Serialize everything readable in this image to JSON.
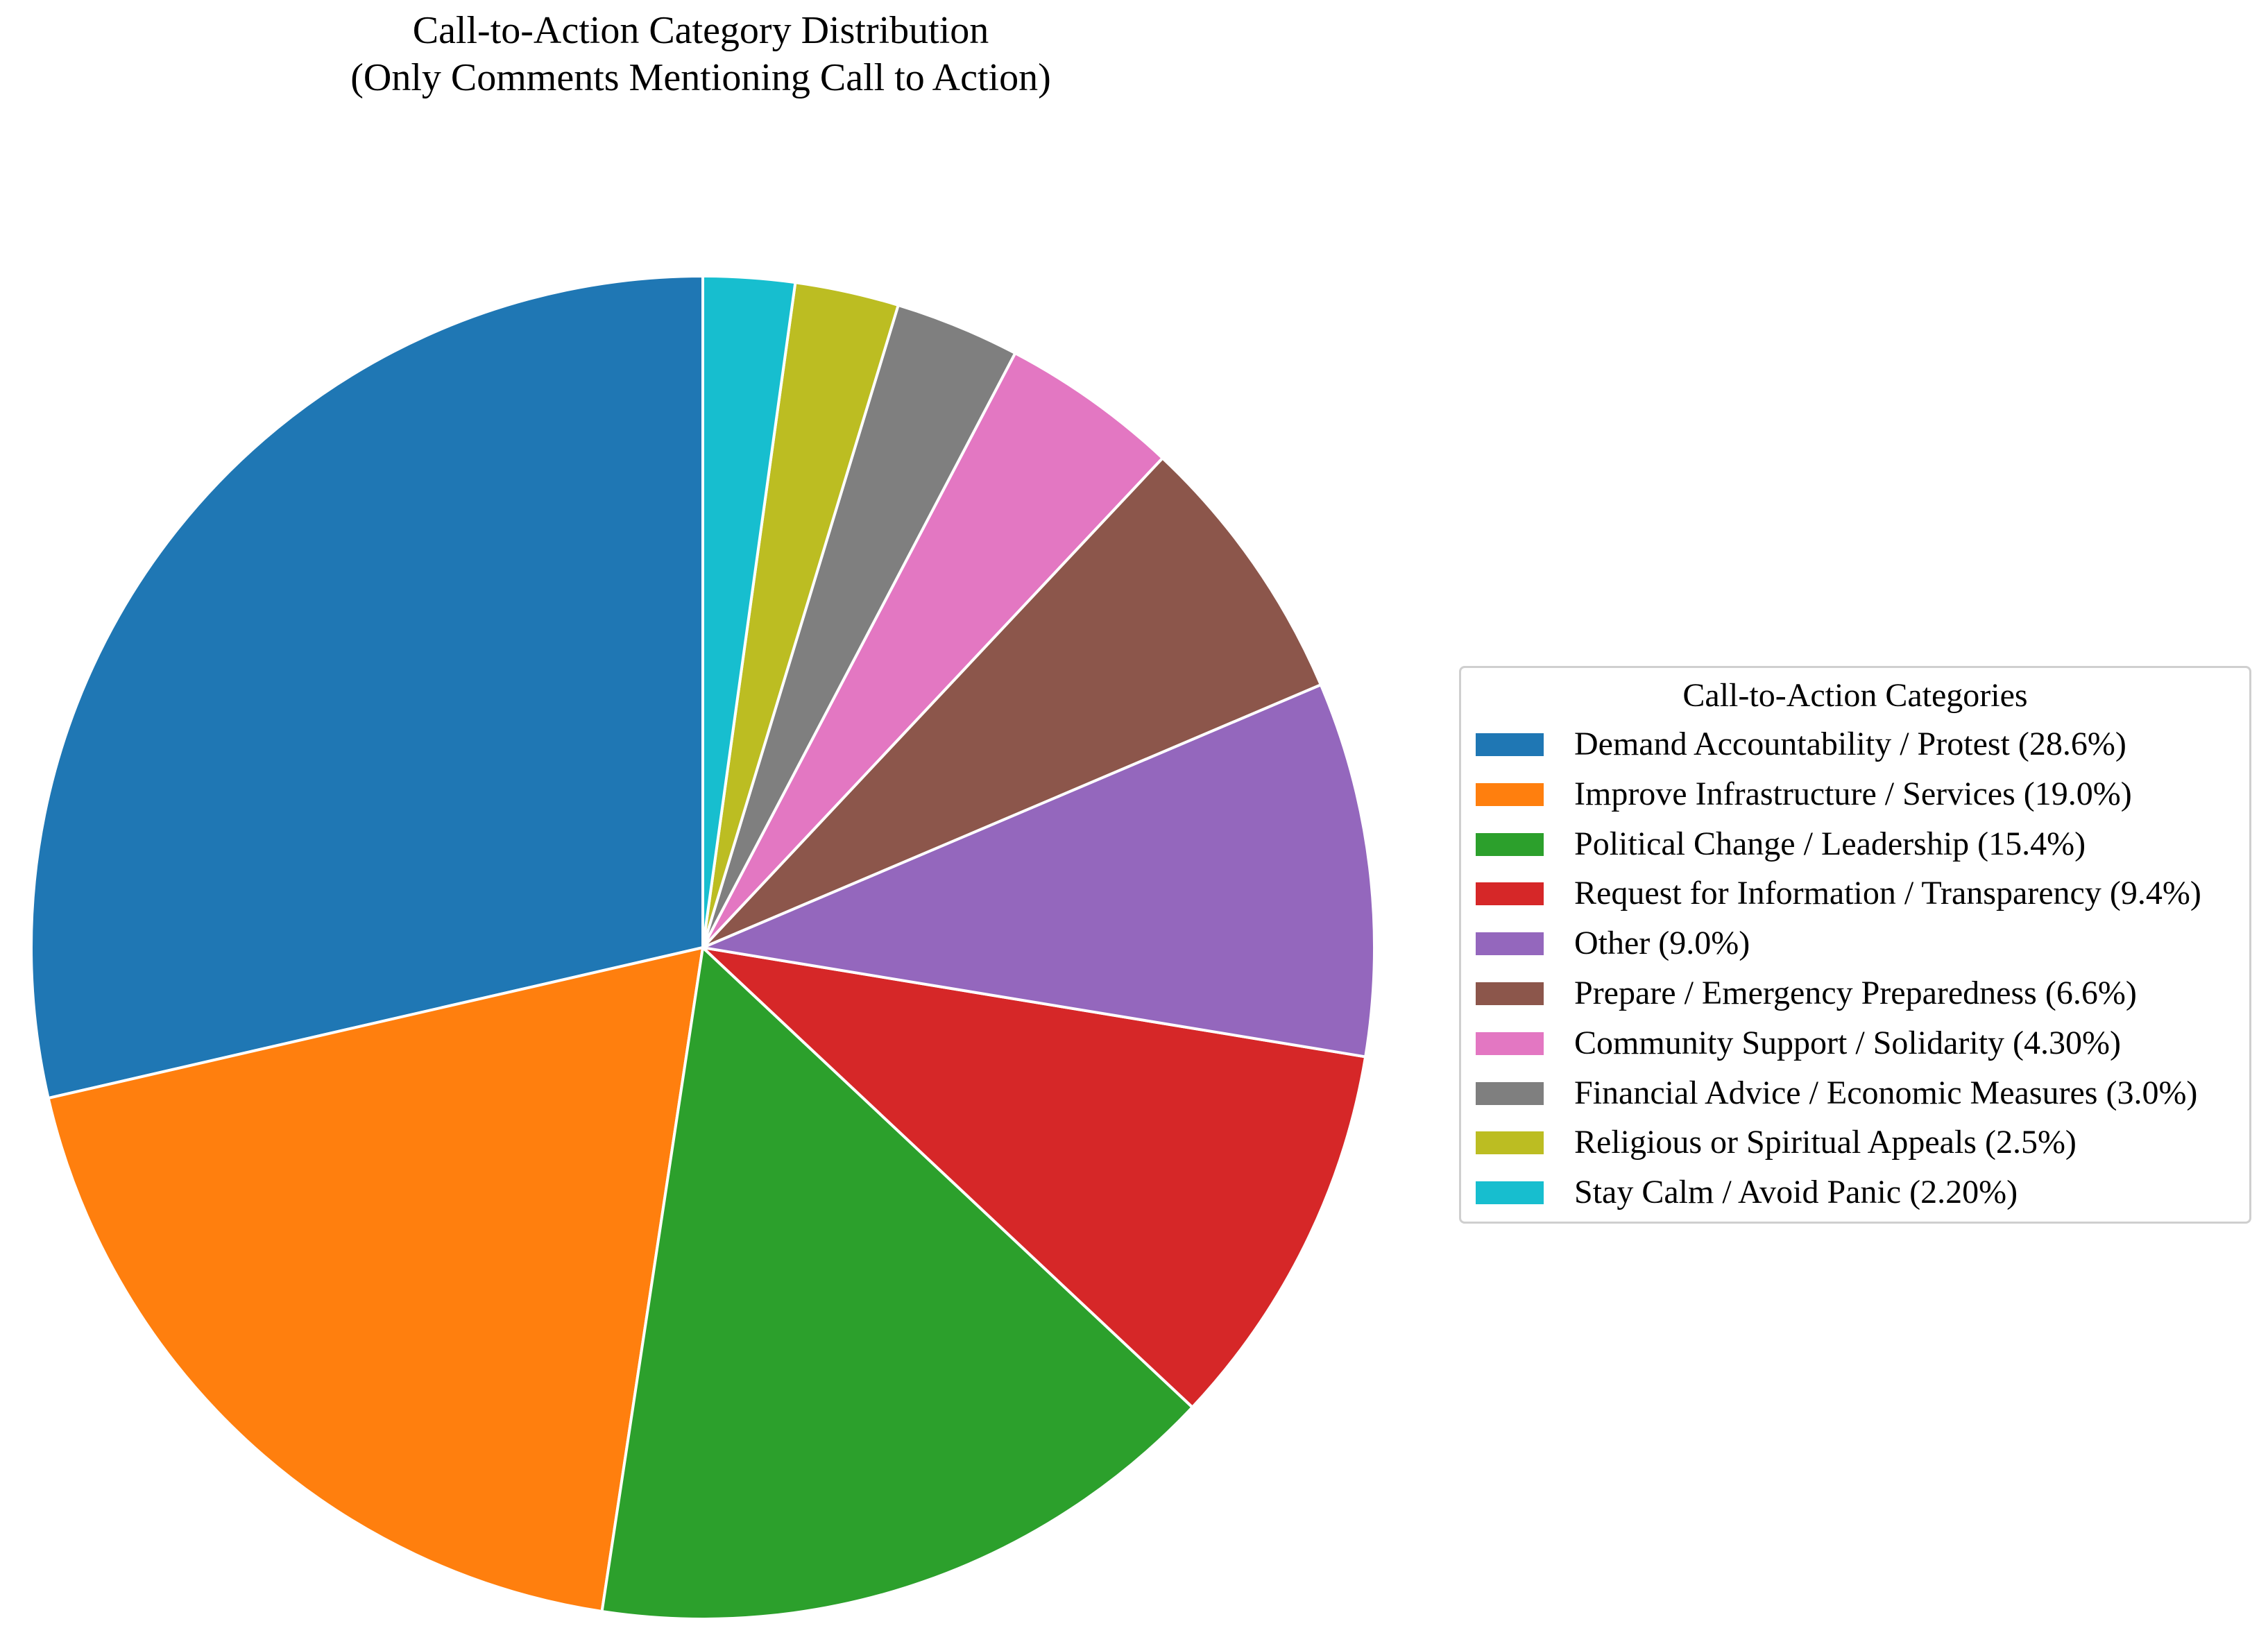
{
  "chart_data": {
    "type": "pie",
    "title": "Call-to-Action Category Distribution\n(Only Comments Mentioning Call to Action)",
    "start_angle": 90,
    "direction": "counterclockwise",
    "edge_color": "#ffffff",
    "slices": [
      {
        "label": "Demand Accountability / Protest",
        "value": 28.6,
        "color": "#1f77b4"
      },
      {
        "label": "Improve Infrastructure / Services",
        "value": 19.0,
        "color": "#ff7f0e"
      },
      {
        "label": "Political Change / Leadership",
        "value": 15.4,
        "color": "#2ca02c"
      },
      {
        "label": "Request for Information / Transparency",
        "value": 9.4,
        "color": "#d62728"
      },
      {
        "label": "Other",
        "value": 9.0,
        "color": "#9467bd"
      },
      {
        "label": "Prepare / Emergency Preparedness",
        "value": 6.6,
        "color": "#8c564b"
      },
      {
        "label": "Community Support / Solidarity",
        "value": 4.3,
        "color": "#e377c2"
      },
      {
        "label": "Financial Advice / Economic Measures",
        "value": 3.0,
        "color": "#7f7f7f"
      },
      {
        "label": "Religious or Spiritual Appeals",
        "value": 2.5,
        "color": "#bcbd22"
      },
      {
        "label": "Stay Calm / Avoid Panic",
        "value": 2.2,
        "color": "#17becf"
      }
    ],
    "legend": {
      "title": "Call-to-Action Categories",
      "placement": "center-right",
      "entries": [
        "Demand Accountability / Protest (28.6%)",
        "Improve Infrastructure / Services (19.0%)",
        "Political Change / Leadership (15.4%)",
        "Request for Information / Transparency (9.4%)",
        "Other (9.0%)",
        "Prepare / Emergency Preparedness (6.6%)",
        "Community Support / Solidarity (4.30%)",
        "Financial Advice / Economic Measures (3.0%)",
        "Religious or Spiritual Appeals (2.5%)",
        "Stay Calm / Avoid Panic (2.20%)"
      ]
    }
  }
}
